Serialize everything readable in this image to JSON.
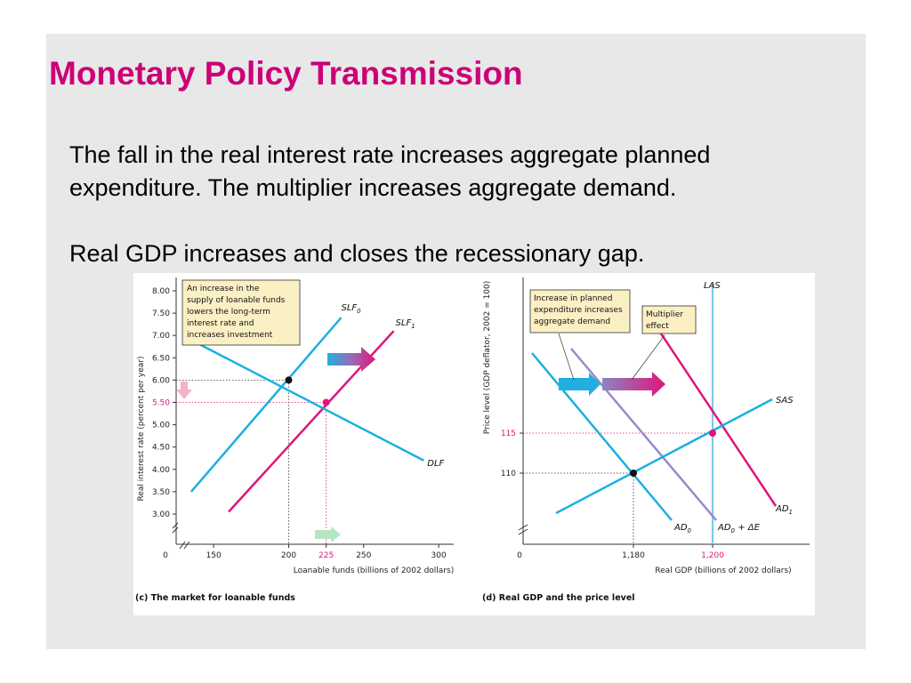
{
  "slide": {
    "title": "Monetary Policy Transmission",
    "paragraph1_line1": "The fall in the real interest rate increases aggregate planned",
    "paragraph1_line2": "expenditure. The multiplier increases aggregate demand.",
    "paragraph2": "Real GDP increases and closes the recessionary gap."
  },
  "colors": {
    "title": "#cc0077",
    "cyan": "#1ab0e0",
    "magenta": "#e0157a",
    "purple": "#9988cc",
    "las": "#7fc8ea",
    "annotation_bg": "#fbefc4"
  },
  "chart_data": [
    {
      "type": "line",
      "caption": "(c) The market for loanable funds",
      "xlabel": "Loanable funds (billions of 2002 dollars)",
      "ylabel": "Real interest rate (percent per year)",
      "xlim": [
        125,
        310
      ],
      "ylim": [
        2.5,
        8.25
      ],
      "x_ticks": [
        "0",
        "150",
        "200",
        "225",
        "250",
        "300"
      ],
      "x_tick_values": [
        150,
        200,
        225,
        250,
        300
      ],
      "y_ticks": [
        "8.00",
        "7.50",
        "7.00",
        "6.50",
        "6.00",
        "5.50",
        "5.00",
        "4.50",
        "4.00",
        "3.50",
        "3.00"
      ],
      "y_tick_values": [
        8,
        7.5,
        7,
        6.5,
        6,
        5.5,
        5,
        4.5,
        4,
        3.5,
        3
      ],
      "series": [
        {
          "name": "SLF",
          "sub": "0",
          "points": [
            [
              135,
              3.5
            ],
            [
              235,
              7.4
            ]
          ]
        },
        {
          "name": "SLF",
          "sub": "1",
          "points": [
            [
              160,
              3.05
            ],
            [
              270,
              7.1
            ]
          ]
        },
        {
          "name": "DLF",
          "sub": "",
          "points": [
            [
              135,
              6.9
            ],
            [
              290,
              4.2
            ]
          ]
        }
      ],
      "equilibria": [
        {
          "x": 200,
          "y": 6.0,
          "x_label": "200",
          "y_label": "6.00"
        },
        {
          "x": 225,
          "y": 5.5,
          "x_label": "225",
          "y_label": "5.50"
        }
      ],
      "annotation": [
        "An increase in the",
        "supply of loanable funds",
        "lowers the long-term",
        "interest rate and",
        "increases investment"
      ]
    },
    {
      "type": "line",
      "caption": "(d) Real GDP and the price level",
      "xlabel": "Real GDP (billions of 2002 dollars)",
      "ylabel": "Price level (GDP deflator, 2002 = 100)",
      "x_ticks": [
        "0",
        "1,180",
        "1,200"
      ],
      "y_ticks": [
        "115",
        "110"
      ],
      "series": [
        {
          "name": "AD",
          "sub": "0",
          "suffix": ""
        },
        {
          "name": "AD",
          "sub": "0",
          "suffix": " + ΔE"
        },
        {
          "name": "AD",
          "sub": "1",
          "suffix": ""
        },
        {
          "name": "SAS",
          "sub": "",
          "suffix": ""
        },
        {
          "name": "LAS",
          "sub": "",
          "suffix": ""
        }
      ],
      "equilibria": [
        {
          "x": 1180,
          "y": 110
        },
        {
          "x": 1200,
          "y": 115
        }
      ],
      "annotation_spending": [
        "Increase in planned",
        "expenditure increases",
        "aggregate demand"
      ],
      "annotation_multiplier": [
        "Multiplier",
        "effect"
      ]
    }
  ]
}
